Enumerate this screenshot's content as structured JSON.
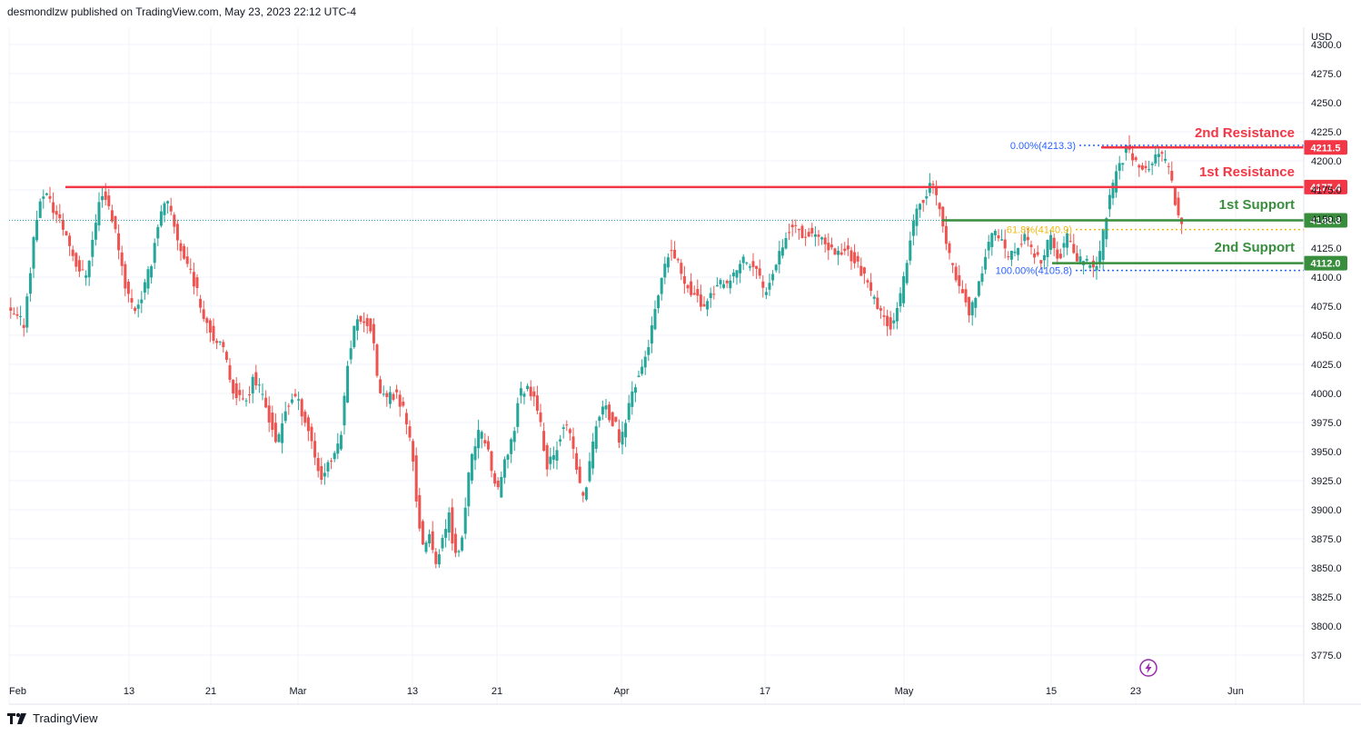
{
  "header": {
    "publisher": "desmondlzw published on TradingView.com, May 23, 2023 22:12 UTC-4"
  },
  "footer": {
    "brand": "TradingView"
  },
  "colors": {
    "up": "#26a69a",
    "down": "#ef5350",
    "resistance": "#f23645",
    "support": "#388e3c",
    "fib": "#2962ff",
    "fib_mid": "#f0b90b",
    "grid": "#f0f3fa",
    "lightning": "#9c27b0"
  },
  "icons": {
    "lightning": "lightning-icon",
    "logo": "tradingview-logo-icon"
  },
  "chart_data": {
    "type": "candlestick",
    "currency": "USD",
    "ylim": [
      3760,
      4300
    ],
    "y_ticks": [
      "4300.0",
      "4275.0",
      "4250.0",
      "4225.0",
      "4200.0",
      "4175.0",
      "4150.0",
      "4125.0",
      "4100.0",
      "4075.0",
      "4050.0",
      "4025.0",
      "4000.0",
      "3975.0",
      "3950.0",
      "3925.0",
      "3900.0",
      "3875.0",
      "3850.0",
      "3825.0",
      "3800.0",
      "3775.0"
    ],
    "x_ticks": [
      "Feb",
      "13",
      "21",
      "Mar",
      "13",
      "21",
      "Apr",
      "17",
      "May",
      "15",
      "23",
      "Jun"
    ],
    "grid": true,
    "path_points": [
      [
        0,
        4070
      ],
      [
        8,
        4060
      ],
      [
        14,
        4150
      ],
      [
        18,
        4175
      ],
      [
        22,
        4160
      ],
      [
        28,
        4140
      ],
      [
        34,
        4110
      ],
      [
        38,
        4100
      ],
      [
        42,
        4135
      ],
      [
        46,
        4175
      ],
      [
        50,
        4160
      ],
      [
        54,
        4130
      ],
      [
        58,
        4090
      ],
      [
        62,
        4072
      ],
      [
        66,
        4085
      ],
      [
        70,
        4110
      ],
      [
        74,
        4150
      ],
      [
        78,
        4165
      ],
      [
        82,
        4140
      ],
      [
        86,
        4118
      ],
      [
        90,
        4105
      ],
      [
        94,
        4078
      ],
      [
        98,
        4060
      ],
      [
        102,
        4045
      ],
      [
        106,
        4035
      ],
      [
        110,
        4005
      ],
      [
        114,
        3995
      ],
      [
        118,
        4000
      ],
      [
        120,
        4015
      ],
      [
        124,
        4000
      ],
      [
        128,
        3980
      ],
      [
        132,
        3955
      ],
      [
        136,
        3985
      ],
      [
        140,
        4000
      ],
      [
        144,
        3985
      ],
      [
        148,
        3965
      ],
      [
        152,
        3935
      ],
      [
        154,
        3925
      ],
      [
        156,
        3940
      ],
      [
        160,
        3945
      ],
      [
        164,
        3975
      ],
      [
        166,
        4025
      ],
      [
        170,
        4060
      ],
      [
        174,
        4065
      ],
      [
        178,
        4055
      ],
      [
        182,
        4000
      ],
      [
        186,
        3995
      ],
      [
        190,
        4000
      ],
      [
        194,
        3985
      ],
      [
        198,
        3950
      ],
      [
        200,
        3910
      ],
      [
        202,
        3880
      ],
      [
        204,
        3860
      ],
      [
        206,
        3880
      ],
      [
        210,
        3855
      ],
      [
        214,
        3880
      ],
      [
        216,
        3900
      ],
      [
        218,
        3870
      ],
      [
        220,
        3855
      ],
      [
        222,
        3870
      ],
      [
        226,
        3935
      ],
      [
        230,
        3965
      ],
      [
        234,
        3960
      ],
      [
        238,
        3925
      ],
      [
        240,
        3915
      ],
      [
        244,
        3945
      ],
      [
        248,
        3970
      ],
      [
        250,
        4000
      ],
      [
        254,
        4005
      ],
      [
        258,
        4000
      ],
      [
        262,
        3960
      ],
      [
        264,
        3935
      ],
      [
        268,
        3950
      ],
      [
        272,
        3975
      ],
      [
        276,
        3960
      ],
      [
        280,
        3920
      ],
      [
        282,
        3910
      ],
      [
        284,
        3930
      ],
      [
        288,
        3975
      ],
      [
        292,
        3990
      ],
      [
        294,
        3980
      ],
      [
        298,
        3970
      ],
      [
        300,
        3955
      ],
      [
        302,
        3975
      ],
      [
        306,
        4005
      ],
      [
        310,
        4020
      ],
      [
        314,
        4045
      ],
      [
        318,
        4080
      ],
      [
        322,
        4110
      ],
      [
        324,
        4125
      ],
      [
        328,
        4110
      ],
      [
        332,
        4095
      ],
      [
        336,
        4085
      ],
      [
        340,
        4075
      ],
      [
        344,
        4085
      ],
      [
        348,
        4095
      ],
      [
        352,
        4090
      ],
      [
        356,
        4105
      ],
      [
        360,
        4115
      ],
      [
        364,
        4110
      ],
      [
        368,
        4100
      ],
      [
        370,
        4085
      ],
      [
        374,
        4105
      ],
      [
        378,
        4125
      ],
      [
        382,
        4140
      ],
      [
        386,
        4145
      ],
      [
        390,
        4135
      ],
      [
        394,
        4140
      ],
      [
        398,
        4130
      ],
      [
        402,
        4125
      ],
      [
        406,
        4120
      ],
      [
        410,
        4125
      ],
      [
        414,
        4115
      ],
      [
        418,
        4105
      ],
      [
        420,
        4095
      ],
      [
        424,
        4080
      ],
      [
        428,
        4065
      ],
      [
        432,
        4060
      ],
      [
        436,
        4075
      ],
      [
        440,
        4110
      ],
      [
        442,
        4140
      ],
      [
        446,
        4160
      ],
      [
        450,
        4175
      ],
      [
        452,
        4180
      ],
      [
        456,
        4160
      ],
      [
        460,
        4120
      ],
      [
        464,
        4100
      ],
      [
        468,
        4085
      ],
      [
        470,
        4070
      ],
      [
        474,
        4080
      ],
      [
        478,
        4120
      ],
      [
        482,
        4140
      ],
      [
        486,
        4130
      ],
      [
        490,
        4115
      ],
      [
        494,
        4125
      ],
      [
        498,
        4135
      ],
      [
        502,
        4120
      ],
      [
        506,
        4110
      ],
      [
        510,
        4135
      ],
      [
        514,
        4115
      ],
      [
        518,
        4135
      ],
      [
        522,
        4120
      ],
      [
        526,
        4110
      ],
      [
        530,
        4115
      ],
      [
        532,
        4105
      ],
      [
        534,
        4115
      ],
      [
        538,
        4160
      ],
      [
        542,
        4185
      ],
      [
        546,
        4205
      ],
      [
        548,
        4213
      ],
      [
        552,
        4200
      ],
      [
        556,
        4190
      ],
      [
        560,
        4200
      ],
      [
        564,
        4205
      ],
      [
        568,
        4195
      ],
      [
        570,
        4175
      ],
      [
        572,
        4160
      ],
      [
        574,
        4149
      ]
    ],
    "levels": [
      {
        "label": "2nd Resistance",
        "value": "4211.5",
        "kind": "resistance"
      },
      {
        "label": "1st Resistance",
        "value": "4177.4",
        "kind": "resistance"
      },
      {
        "label": "1st Support",
        "value": "4148.8",
        "kind": "support"
      },
      {
        "label": "2nd Support",
        "value": "4112.0",
        "kind": "support"
      }
    ],
    "fib_levels": [
      {
        "label": "0.00%(4213.3)",
        "value": 4213.3
      },
      {
        "label": "61.8%(4140.9)",
        "value": 4140.9
      },
      {
        "label": "100.00%(4105.8)",
        "value": 4105.8
      }
    ],
    "last_price": 4148.8
  }
}
